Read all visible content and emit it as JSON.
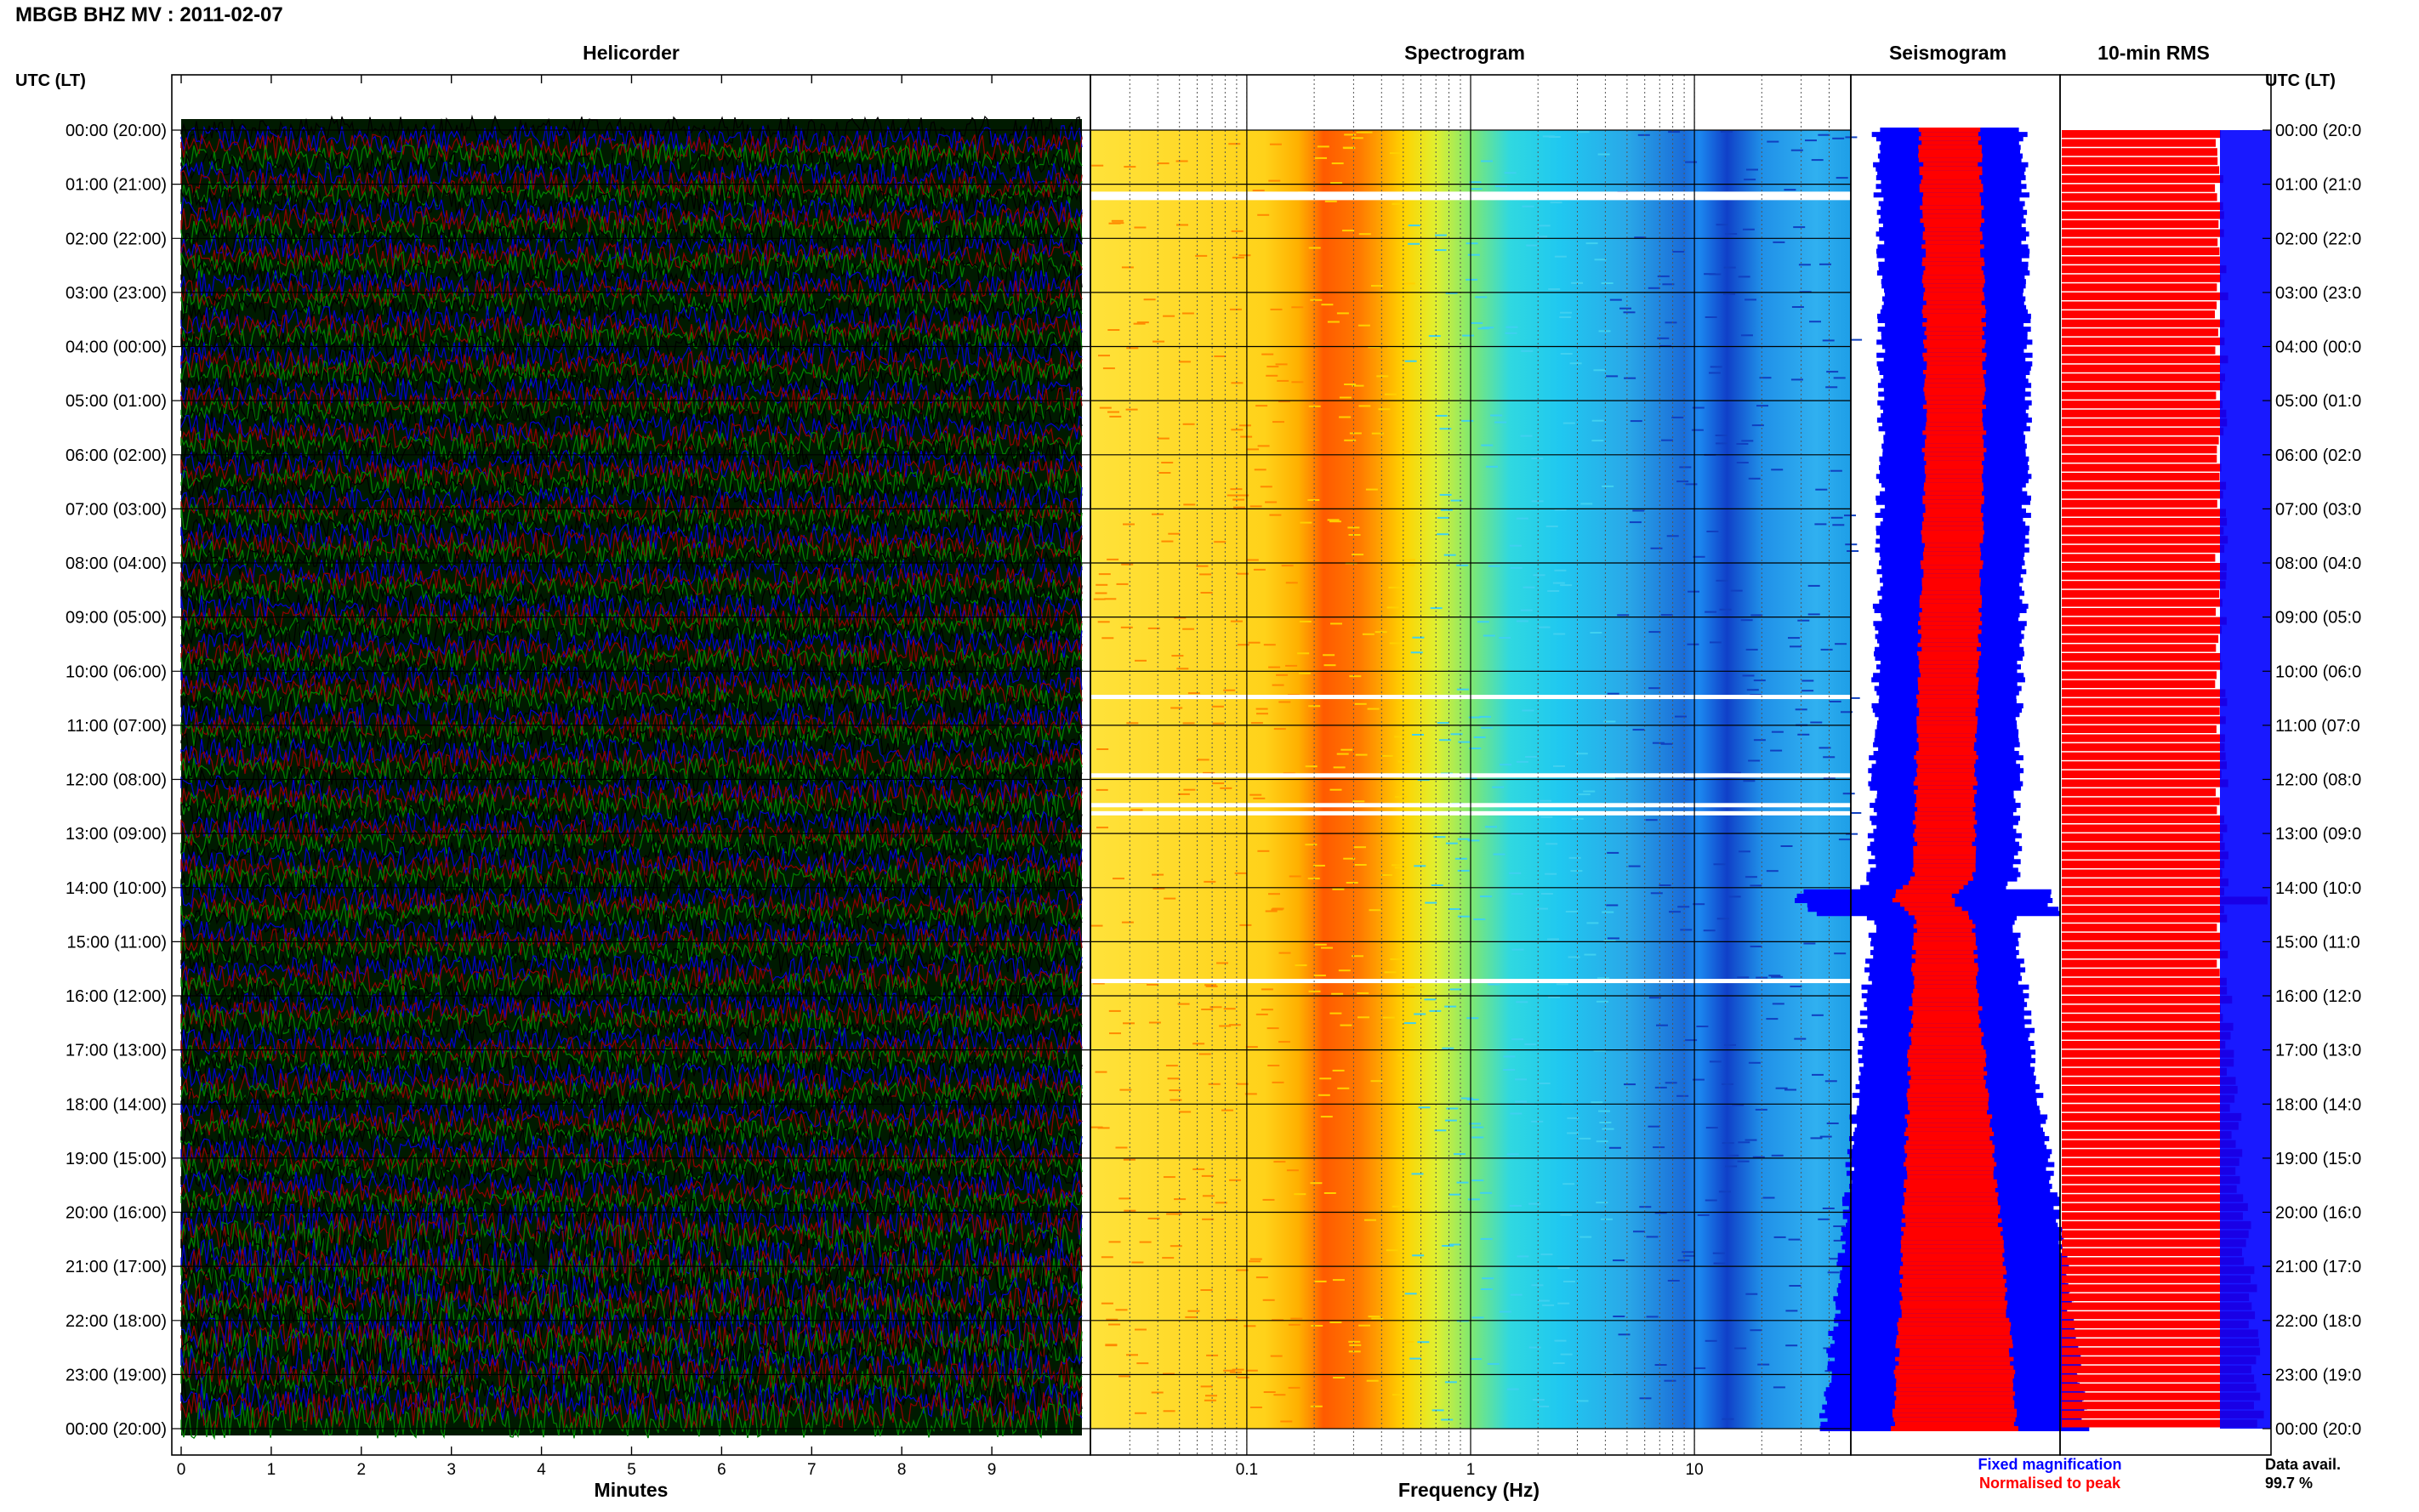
{
  "header": {
    "title": "MBGB BHZ MV : 2011-02-07"
  },
  "chart_data": {
    "type": "multi-panel seismic plot",
    "left_axis_label": "UTC (LT)",
    "right_axis_label": "UTC (LT)",
    "hour_labels": [
      "00:00 (20:00)",
      "01:00 (21:00)",
      "02:00 (22:00)",
      "03:00 (23:00)",
      "04:00 (00:00)",
      "05:00 (01:00)",
      "06:00 (02:00)",
      "07:00 (03:00)",
      "08:00 (04:00)",
      "09:00 (05:00)",
      "10:00 (06:00)",
      "11:00 (07:00)",
      "12:00 (08:00)",
      "13:00 (09:00)",
      "14:00 (10:00)",
      "15:00 (11:00)",
      "16:00 (12:00)",
      "17:00 (13:00)",
      "18:00 (14:00)",
      "19:00 (15:00)",
      "20:00 (16:00)",
      "21:00 (17:00)",
      "22:00 (18:00)",
      "23:00 (19:00)",
      "00:00 (20:00)"
    ],
    "right_hour_labels": [
      "00:00 (20:0",
      "01:00 (21:0",
      "02:00 (22:0",
      "03:00 (23:0",
      "04:00 (00:0",
      "05:00 (01:0",
      "06:00 (02:0",
      "07:00 (03:0",
      "08:00 (04:0",
      "09:00 (05:0",
      "10:00 (06:0",
      "11:00 (07:0",
      "12:00 (08:0",
      "13:00 (09:0",
      "14:00 (10:0",
      "15:00 (11:0",
      "16:00 (12:0",
      "17:00 (13:0",
      "18:00 (14:0",
      "19:00 (15:0",
      "20:00 (16:0",
      "21:00 (17:0",
      "22:00 (18:0",
      "23:00 (19:0",
      "00:00 (20:0"
    ],
    "helicorder": {
      "title": "Helicorder",
      "xlabel": "Minutes",
      "xlim": [
        0,
        10
      ],
      "x_ticks": [
        "0",
        "1",
        "2",
        "3",
        "4",
        "5",
        "6",
        "7",
        "8",
        "9"
      ],
      "trace_colors": [
        "#000000",
        "#0000cc",
        "#8b0000",
        "#008000"
      ]
    },
    "spectrogram": {
      "title": "Spectrogram",
      "xlabel": "Frequency (Hz)",
      "x_scale": "log",
      "xlim": [
        0.02,
        50
      ],
      "x_ticks": [
        {
          "value": 0.1,
          "label": "0.1"
        },
        {
          "value": 1,
          "label": "1"
        },
        {
          "value": 10,
          "label": "10"
        }
      ],
      "gap_hours": [
        1.2,
        10.5,
        11.95,
        12.5,
        12.65,
        15.75
      ]
    },
    "seismogram": {
      "title": "Seismogram",
      "legend": [
        {
          "label": "Fixed magnification",
          "color": "#0000ff"
        },
        {
          "label": "Normalised to peak",
          "color": "#ff0000"
        }
      ]
    },
    "rms": {
      "title": "10-min RMS",
      "bar_colors": {
        "fixed": "#0000ff",
        "normalised": "#ff0000"
      },
      "data_avail_label": "Data avail.",
      "data_avail_value": "99.7 %"
    }
  }
}
